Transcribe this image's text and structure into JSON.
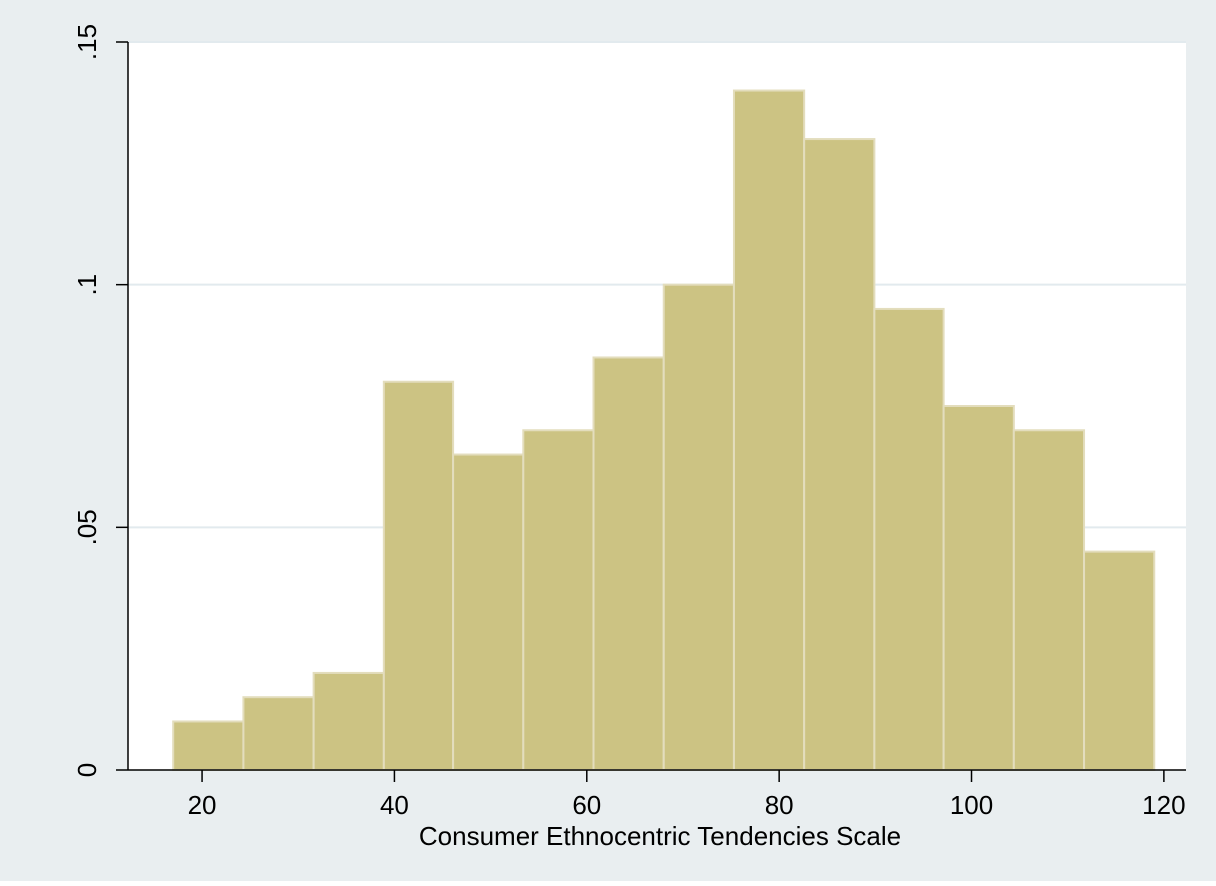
{
  "chart_data": {
    "type": "bar",
    "title": "",
    "xlabel": "Consumer Ethnocentric Tendencies Scale",
    "ylabel": "",
    "xlim": [
      12.3,
      122.3
    ],
    "ylim": [
      0,
      0.15
    ],
    "grid": true,
    "x_ticks": [
      {
        "value": 20,
        "label": "20"
      },
      {
        "value": 40,
        "label": "40"
      },
      {
        "value": 60,
        "label": "60"
      },
      {
        "value": 80,
        "label": "80"
      },
      {
        "value": 100,
        "label": "100"
      },
      {
        "value": 120,
        "label": "120"
      }
    ],
    "y_ticks": [
      {
        "value": 0,
        "label": "0"
      },
      {
        "value": 0.05,
        "label": ".05"
      },
      {
        "value": 0.1,
        "label": ".1"
      },
      {
        "value": 0.15,
        "label": ".15"
      }
    ],
    "bin_edges": [
      17.0,
      24.3,
      31.6,
      38.9,
      46.1,
      53.4,
      60.7,
      68.0,
      75.3,
      82.6,
      89.9,
      97.1,
      104.4,
      111.7,
      119.0
    ],
    "values": [
      0.01,
      0.015,
      0.02,
      0.08,
      0.065,
      0.07,
      0.085,
      0.1,
      0.14,
      0.13,
      0.095,
      0.075,
      0.07,
      0.045
    ],
    "colors": {
      "bar_fill": "#ccc383",
      "bar_edge": "#e3ddbd",
      "outer_background": "#e9eef0",
      "plot_background": "#ffffff",
      "grid": "#e2eaee",
      "axis": "#000000"
    }
  }
}
